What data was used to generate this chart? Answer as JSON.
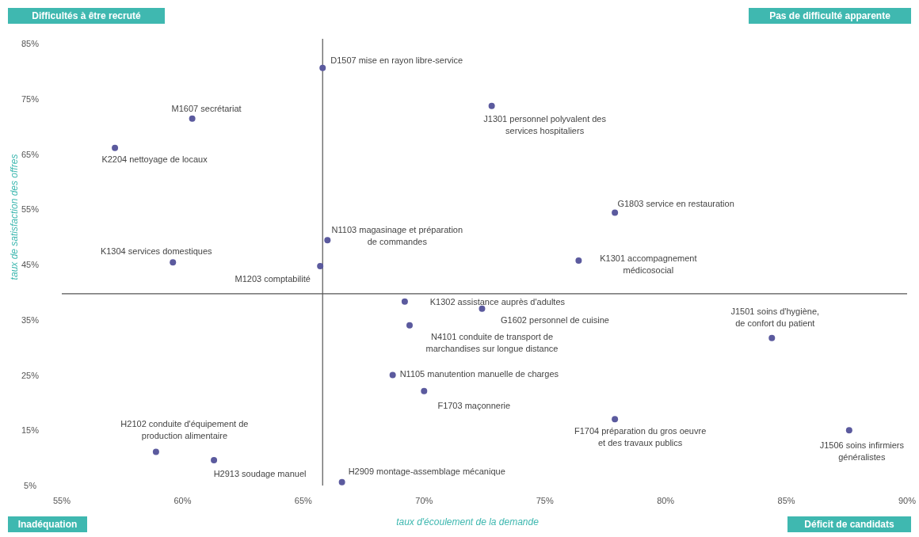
{
  "chart_data": {
    "type": "scatter",
    "xlabel": "taux d'écoulement de la demande",
    "ylabel": "taux de satisfaction des offres",
    "x": [
      65.8,
      60.4,
      57.2,
      72.8,
      77.9,
      66.0,
      59.6,
      65.7,
      76.4,
      69.2,
      72.4,
      69.4,
      84.4,
      68.7,
      70.0,
      77.9,
      87.6,
      58.9,
      61.3,
      66.6
    ],
    "series": [
      {
        "color": "#5b5a9e",
        "values": [
          80.6,
          71.4,
          66.1,
          73.7,
          54.4,
          49.4,
          45.4,
          44.7,
          45.7,
          38.3,
          37.0,
          34.0,
          31.7,
          25.0,
          22.1,
          17.0,
          15.0,
          11.1,
          9.6,
          5.6
        ]
      }
    ],
    "marker": "circle",
    "grid": false,
    "xlim": [
      55,
      90
    ],
    "ylim": [
      5,
      85
    ],
    "xticks": [
      {
        "value": 55,
        "label": "55%"
      },
      {
        "value": 60,
        "label": "60%"
      },
      {
        "value": 65,
        "label": "65%"
      },
      {
        "value": 70,
        "label": "70%"
      },
      {
        "value": 75,
        "label": "75%"
      },
      {
        "value": 80,
        "label": "80%"
      },
      {
        "value": 85,
        "label": "85%"
      },
      {
        "value": 90,
        "label": "90%"
      }
    ],
    "yticks": [
      {
        "value": 5,
        "label": "5%"
      },
      {
        "value": 15,
        "label": "15%"
      },
      {
        "value": 25,
        "label": "25%"
      },
      {
        "value": 35,
        "label": "35%"
      },
      {
        "value": 45,
        "label": "45%"
      },
      {
        "value": 55,
        "label": "55%"
      },
      {
        "value": 65,
        "label": "65%"
      },
      {
        "value": 75,
        "label": "75%"
      },
      {
        "value": 85,
        "label": "85%"
      }
    ],
    "ref_lines": [
      {
        "axis": "x",
        "value": 65.8,
        "color": "#555555"
      },
      {
        "axis": "y",
        "value": 39.7,
        "color": "#555555"
      }
    ],
    "annotations": [
      "Difficultés à être recruté",
      "Pas de difficulté apparente",
      "Inadéquation",
      "Déficit de candidats",
      {
        "text": "D1507 mise en rayon libre-service",
        "x": 65.8,
        "y": 80.6
      },
      {
        "text": "M1607 secrétariat",
        "x": 60.4,
        "y": 71.4
      },
      {
        "text": "K2204 nettoyage de locaux",
        "x": 57.2,
        "y": 66.1
      },
      {
        "text": "J1301 personnel polyvalent des\nservices hospitaliers",
        "x": 72.8,
        "y": 73.7
      },
      {
        "text": "G1803 service en restauration",
        "x": 77.9,
        "y": 54.4
      },
      {
        "text": "N1103 magasinage et préparation\nde commandes",
        "x": 66.0,
        "y": 49.4
      },
      {
        "text": "K1304 services domestiques",
        "x": 59.6,
        "y": 45.4
      },
      {
        "text": "M1203 comptabilité",
        "x": 65.7,
        "y": 44.7
      },
      {
        "text": "K1301 accompagnement\nmédicosocial",
        "x": 76.4,
        "y": 45.7
      },
      {
        "text": "K1302 assistance auprès d'adultes",
        "x": 69.2,
        "y": 38.3
      },
      {
        "text": "G1602 personnel de cuisine",
        "x": 72.4,
        "y": 37.0
      },
      {
        "text": "N4101 conduite de transport de\nmarchandises sur longue distance",
        "x": 69.4,
        "y": 34.0
      },
      {
        "text": "J1501 soins d'hygiène,\nde confort du patient",
        "x": 84.4,
        "y": 31.7
      },
      {
        "text": "N1105 manutention manuelle de charges",
        "x": 68.7,
        "y": 25.0
      },
      {
        "text": "F1703 maçonnerie",
        "x": 70.0,
        "y": 22.1
      },
      {
        "text": "F1704 préparation du gros oeuvre\net des travaux publics",
        "x": 77.9,
        "y": 17.0
      },
      {
        "text": "J1506 soins infirmiers\ngénéralistes",
        "x": 87.6,
        "y": 15.0
      },
      {
        "text": "H2102 conduite d'équipement de\nproduction alimentaire",
        "x": 58.9,
        "y": 11.1
      },
      {
        "text": "H2913 soudage manuel",
        "x": 61.3,
        "y": 9.6
      },
      {
        "text": "H2909 montage-assemblage mécanique",
        "x": 66.6,
        "y": 5.6
      }
    ]
  }
}
